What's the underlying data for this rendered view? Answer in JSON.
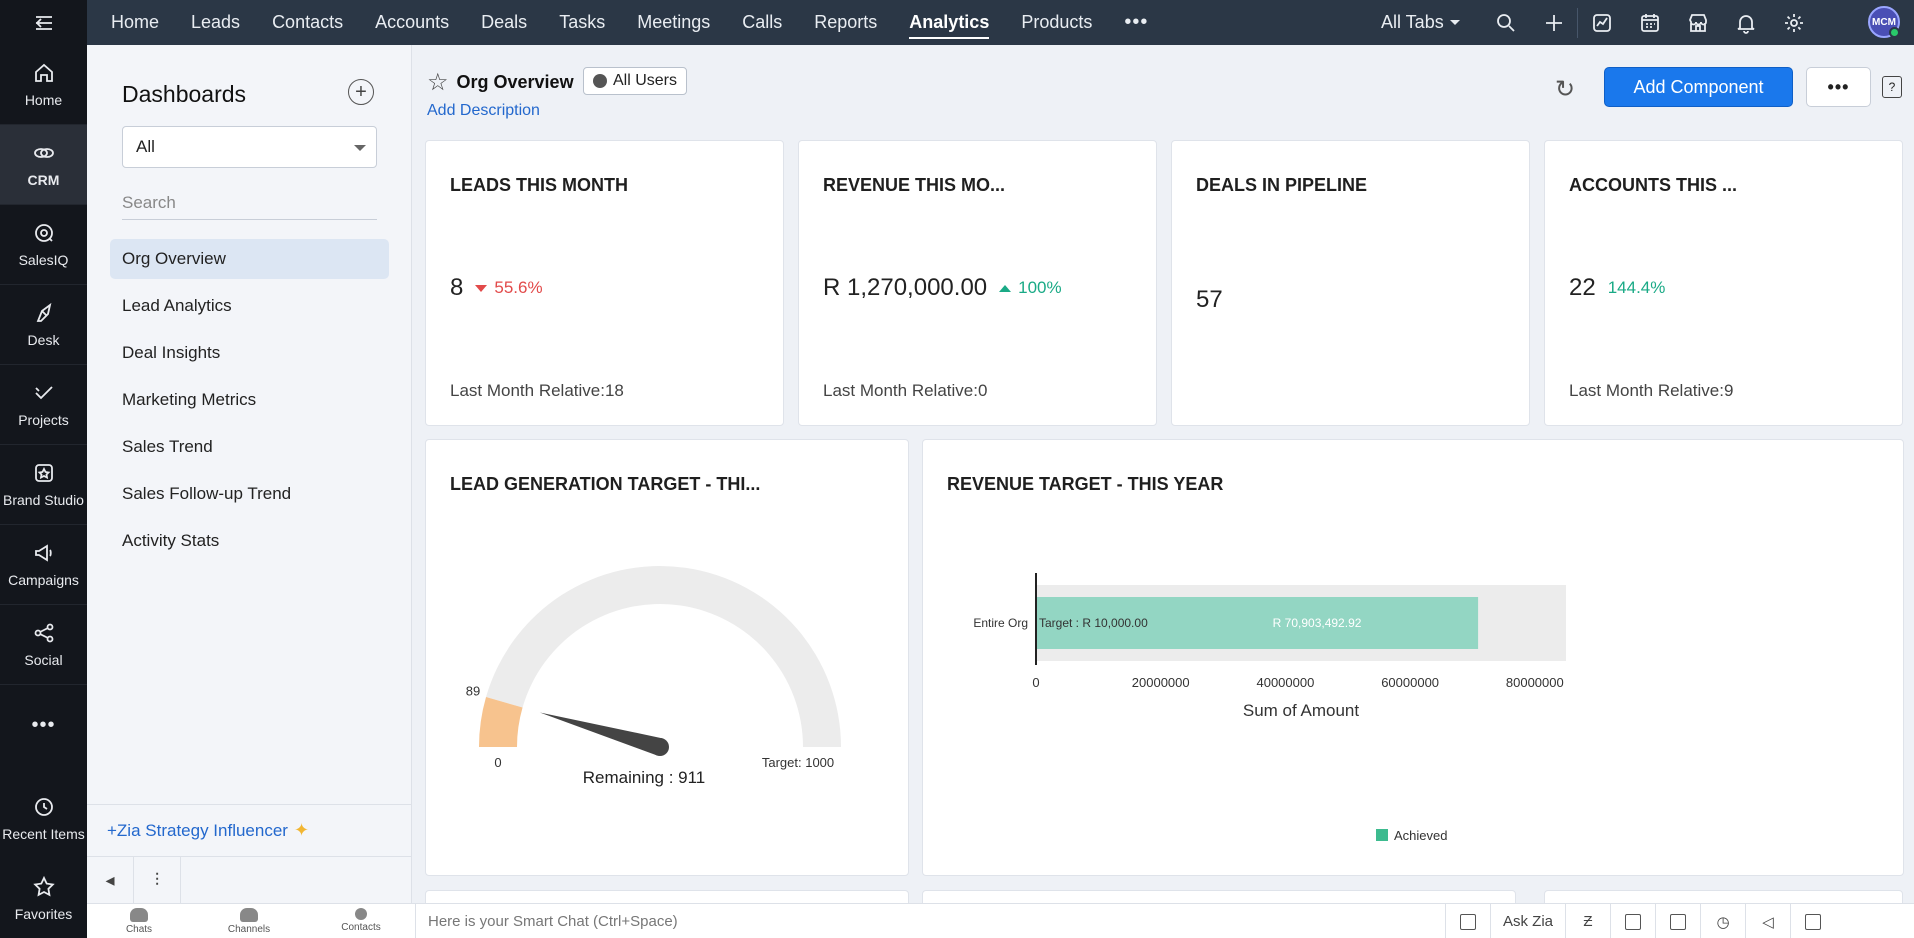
{
  "rail": {
    "apps": [
      {
        "label": "Home",
        "icon": "home-icon"
      },
      {
        "label": "CRM",
        "icon": "crm-icon"
      },
      {
        "label": "SalesIQ",
        "icon": "salesiq-icon"
      },
      {
        "label": "Desk",
        "icon": "desk-icon"
      },
      {
        "label": "Projects",
        "icon": "projects-icon"
      },
      {
        "label": "Brand Studio",
        "icon": "brand-studio-icon"
      },
      {
        "label": "Campaigns",
        "icon": "campaigns-icon"
      },
      {
        "label": "Social",
        "icon": "social-icon"
      }
    ],
    "bottom": [
      {
        "label": "Recent Items",
        "icon": "recent-items-icon"
      },
      {
        "label": "Favorites",
        "icon": "favorites-icon"
      }
    ]
  },
  "topnav": {
    "tabs": [
      "Home",
      "Leads",
      "Contacts",
      "Accounts",
      "Deals",
      "Tasks",
      "Meetings",
      "Calls",
      "Reports",
      "Analytics",
      "Products"
    ],
    "active_tab": "Analytics",
    "all_tabs": "All Tabs",
    "avatar_initials": "MCM"
  },
  "sidebar": {
    "title": "Dashboards",
    "filter_value": "All",
    "search_placeholder": "Search",
    "items": [
      "Org Overview",
      "Lead Analytics",
      "Deal Insights",
      "Marketing Metrics",
      "Sales Trend",
      "Sales Follow-up Trend",
      "Activity Stats"
    ],
    "active_item": "Org Overview",
    "zia": "+Zia Strategy Influencer"
  },
  "header": {
    "title": "Org Overview",
    "users": "All Users",
    "add_description": "Add Description",
    "add_component": "Add Component"
  },
  "kpis": [
    {
      "title": "LEADS THIS MONTH",
      "value": "8",
      "change": "55.6%",
      "direction": "down",
      "relative": "Last Month Relative:18"
    },
    {
      "title": "REVENUE THIS MO...",
      "value": "R 1,270,000.00",
      "change": "100%",
      "direction": "up",
      "relative": "Last Month Relative:0"
    },
    {
      "title": "DEALS IN PIPELINE",
      "value": "57",
      "change": "",
      "direction": "",
      "relative": ""
    },
    {
      "title": "ACCOUNTS THIS ...",
      "value": "22",
      "change": "144.4%",
      "direction": "none",
      "relative": "Last Month Relative:9"
    }
  ],
  "chart_data": [
    {
      "type": "gauge",
      "title": "LEAD GENERATION TARGET - THI...",
      "value": 89,
      "min": 0,
      "max": 1000,
      "min_label": "0",
      "value_label": "89",
      "target_label": "Target: 1000",
      "remaining_label": "Remaining : 911",
      "colors": {
        "achieved": "#f7c38e",
        "remaining": "#ececec",
        "needle": "#444444"
      }
    },
    {
      "type": "bar",
      "orientation": "horizontal",
      "title": "REVENUE TARGET - THIS YEAR",
      "categories": [
        "Entire Org"
      ],
      "series": [
        {
          "name": "Achieved",
          "values": [
            70903492.92
          ]
        }
      ],
      "target": 10000,
      "target_label": "Target : R 10,000.00",
      "value_label": "R 70,903,492.92",
      "xlim": [
        0,
        85000000
      ],
      "xticks": [
        0,
        20000000,
        40000000,
        60000000,
        80000000
      ],
      "xtick_labels": [
        "0",
        "20000000",
        "40000000",
        "60000000",
        "80000000"
      ],
      "xlabel": "Sum of Amount",
      "legend": "bottom",
      "colors": {
        "achieved": "#93d6c3",
        "track": "#ececec",
        "legend": "#3dbb8f"
      }
    }
  ],
  "bottombar": {
    "items": [
      "Chats",
      "Channels",
      "Contacts"
    ],
    "chat_placeholder": "Here is your Smart Chat (Ctrl+Space)",
    "ask_zia": "Ask Zia"
  }
}
